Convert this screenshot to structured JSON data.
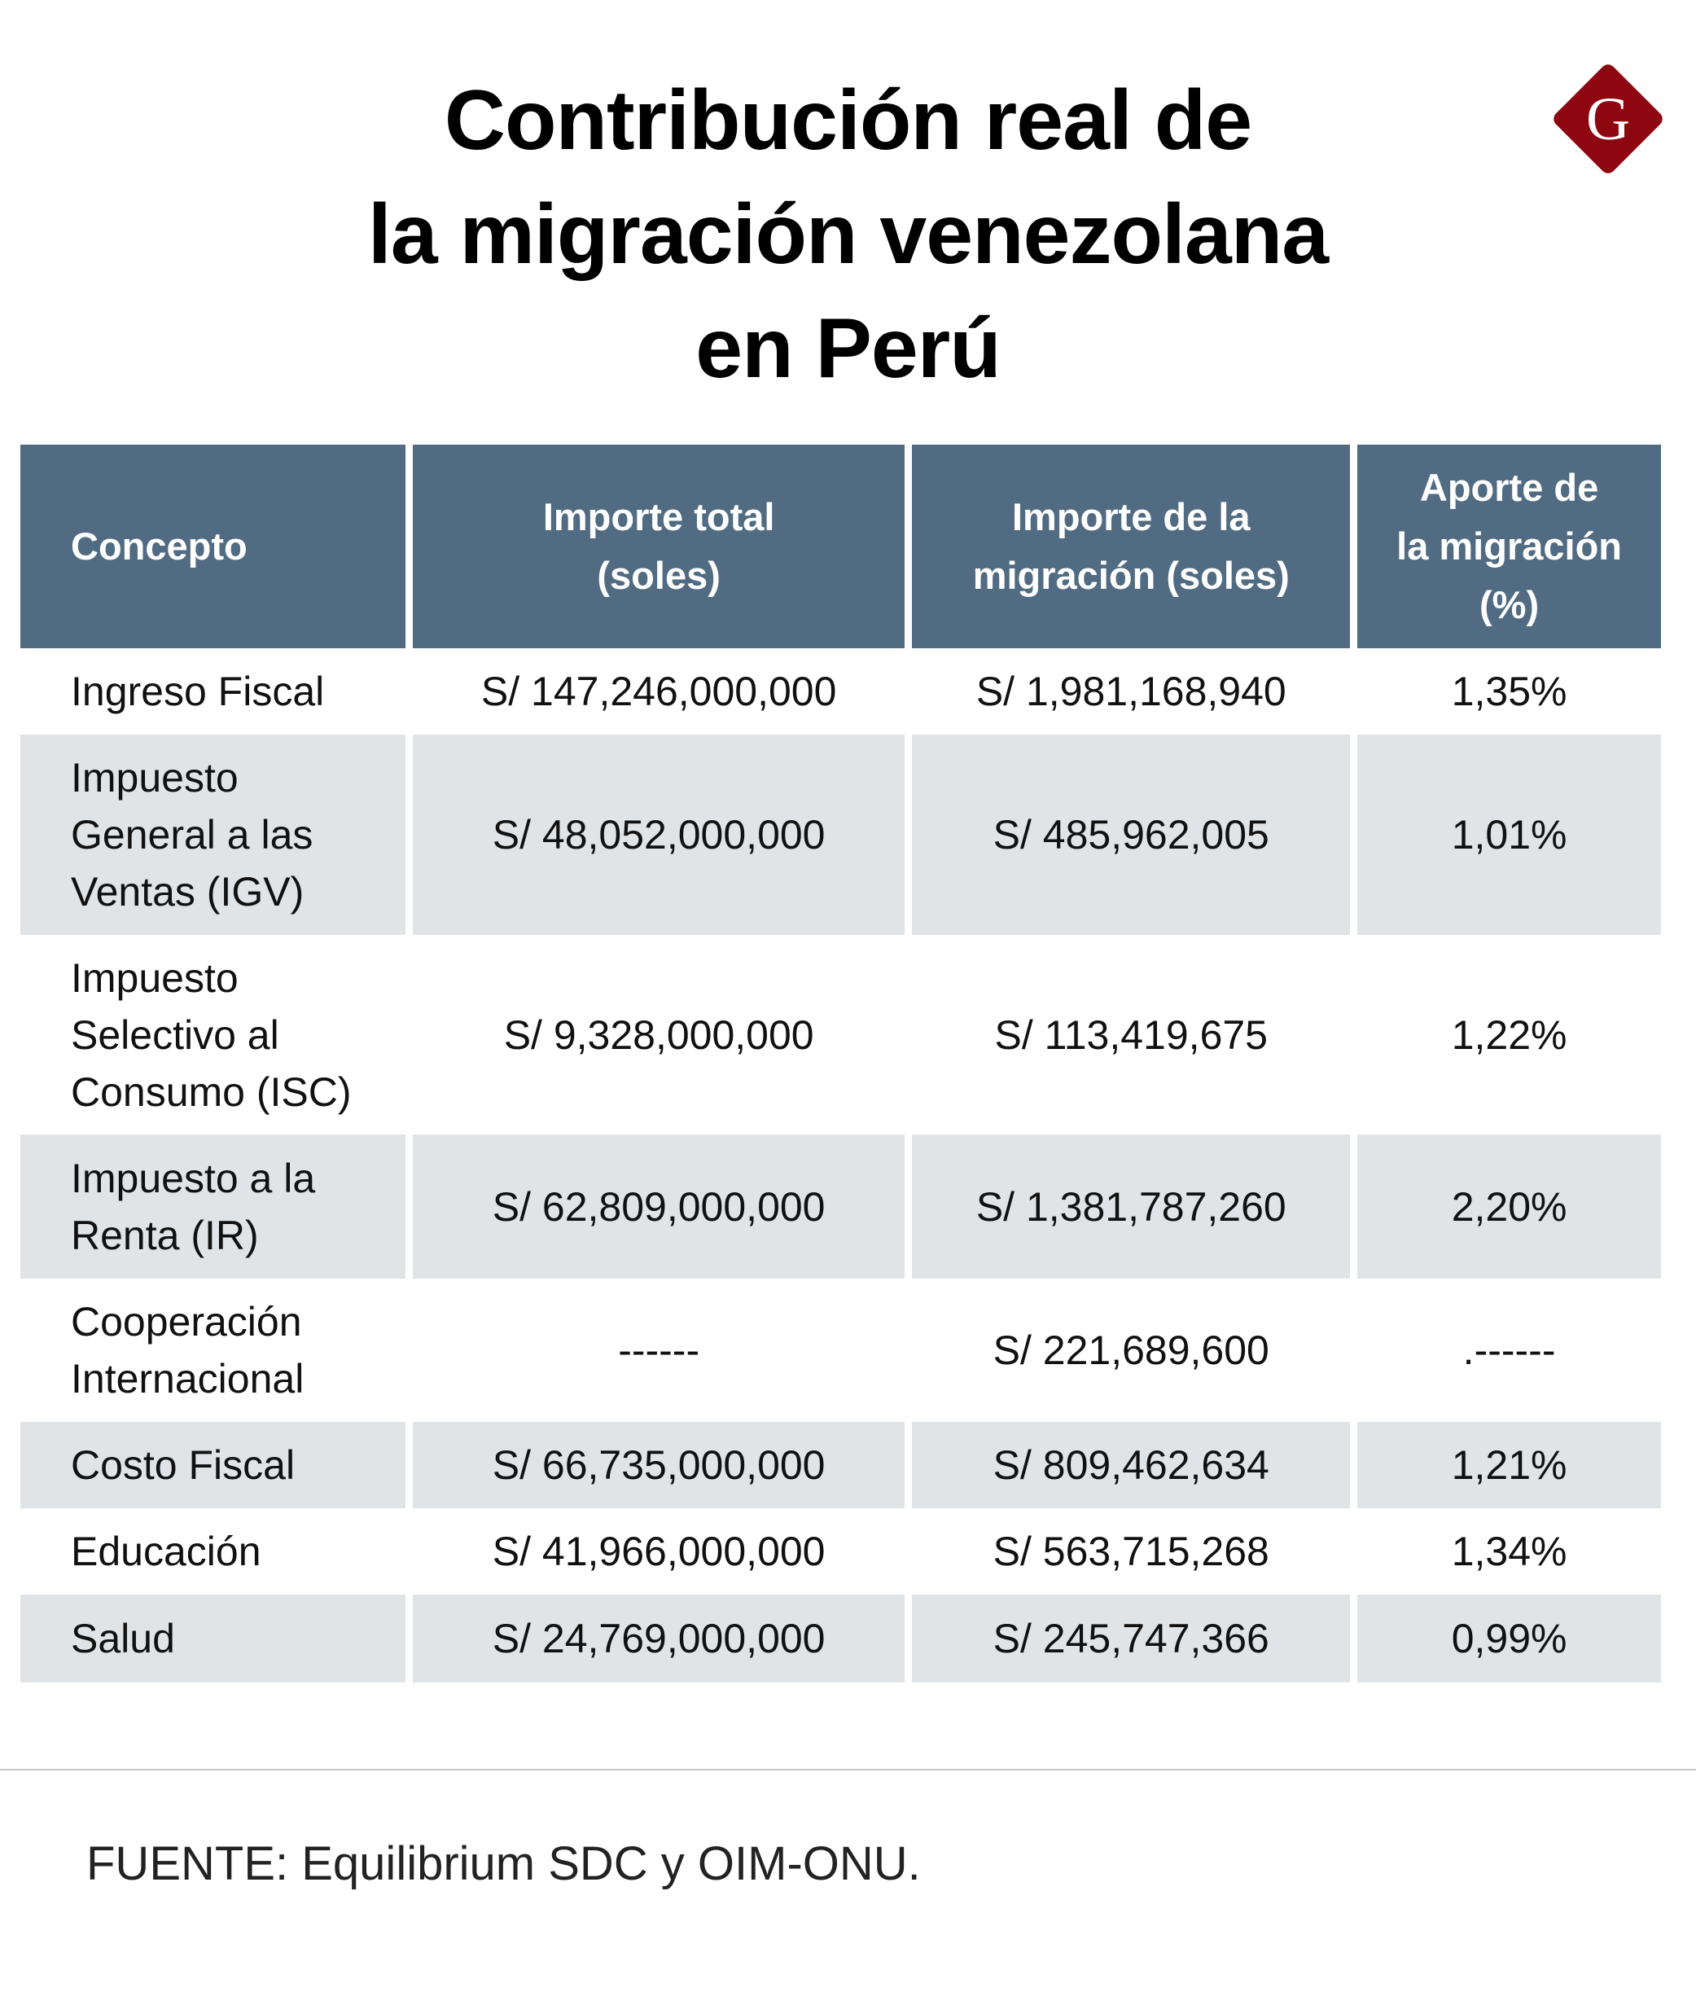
{
  "title": {
    "lines": [
      "Contribución real de",
      "la migración venezolana",
      "en Perú"
    ]
  },
  "logo": {
    "letter": "G",
    "color": "#8e0710"
  },
  "table": {
    "headers": [
      "Concepto",
      "Importe total (soles)",
      "Importe de la migración (soles)",
      "Aporte de la migración (%)"
    ],
    "header_color": "#516c82",
    "rows": [
      {
        "concepto": "Ingreso Fiscal",
        "total": "S/ 147,246,000,000",
        "migracion": "S/ 1,981,168,940",
        "aporte": "1,35%"
      },
      {
        "concepto": "Impuesto General a las Ventas (IGV)",
        "total": "S/ 48,052,000,000",
        "migracion": "S/ 485,962,005",
        "aporte": "1,01%"
      },
      {
        "concepto": "Impuesto Selectivo al Consumo (ISC)",
        "total": "S/ 9,328,000,000",
        "migracion": "S/ 113,419,675",
        "aporte": "1,22%"
      },
      {
        "concepto": "Impuesto a la Renta (IR)",
        "total": "S/ 62,809,000,000",
        "migracion": "S/ 1,381,787,260",
        "aporte": "2,20%"
      },
      {
        "concepto": "Cooperación Internacional",
        "total": "------",
        "migracion": "S/ 221,689,600",
        "aporte": ".------"
      },
      {
        "concepto": "Costo Fiscal",
        "total": "S/ 66,735,000,000",
        "migracion": "S/ 809,462,634",
        "aporte": "1,21%"
      },
      {
        "concepto": "Educación",
        "total": "S/ 41,966,000,000",
        "migracion": "S/ 563,715,268",
        "aporte": "1,34%"
      },
      {
        "concepto": "Salud",
        "total": "S/ 24,769,000,000",
        "migracion": "S/ 245,747,366",
        "aporte": "0,99%"
      }
    ]
  },
  "source": "FUENTE: Equilibrium SDC y OIM-ONU."
}
